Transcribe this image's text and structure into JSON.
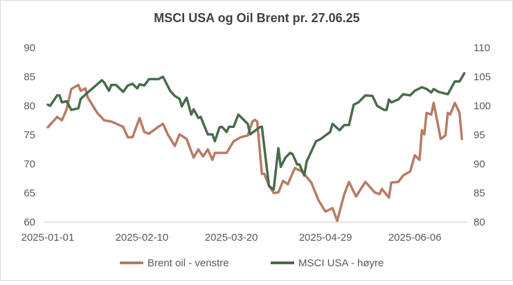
{
  "chart_data": {
    "type": "line",
    "title": "MSCI USA og Oil  Brent pr. 27.06.25",
    "x_start_date": "2025-01-01",
    "x_unit": "days since 2025-01-01",
    "x_tick_labels": [
      "2025-01-01",
      "2025-02-10",
      "2025-03-20",
      "2025-04-29",
      "2025-06-06"
    ],
    "x_tick_days": [
      0,
      40,
      78,
      118,
      156
    ],
    "x_range_days": [
      0,
      178
    ],
    "y_left": {
      "range": [
        60,
        90
      ],
      "ticks": [
        60,
        65,
        70,
        75,
        80,
        85,
        90
      ],
      "label": ""
    },
    "y_right": {
      "range": [
        80,
        110
      ],
      "ticks": [
        80,
        85,
        90,
        95,
        100,
        105,
        110
      ],
      "label": ""
    },
    "grid": false,
    "legend_position": "bottom",
    "series": [
      {
        "name": "Brent oil - venstre",
        "axis": "left",
        "color": "#B77B66",
        "x": [
          0,
          4,
          6,
          8,
          10,
          13,
          14,
          16,
          17,
          21,
          24,
          27,
          32,
          34,
          36,
          39,
          41,
          43,
          47,
          49,
          51,
          54,
          56,
          59,
          62,
          64,
          66,
          68,
          70,
          71,
          76,
          79,
          82,
          85,
          87,
          88,
          89,
          91,
          92,
          94,
          96,
          98,
          100,
          102,
          105,
          108,
          112,
          115,
          118,
          121,
          123,
          126,
          128,
          131,
          135,
          139,
          141,
          142,
          145,
          146,
          149,
          151,
          154,
          156,
          158,
          159,
          160,
          161,
          163,
          164,
          167,
          169,
          170,
          171,
          173,
          175,
          176
        ],
        "y": [
          76.3,
          78.1,
          77.5,
          79.4,
          82.9,
          83.6,
          82.6,
          83.0,
          81.4,
          78.8,
          77.5,
          77.3,
          76.4,
          74.6,
          74.6,
          77.9,
          75.5,
          75.2,
          76.4,
          76.9,
          75.1,
          73.1,
          75.1,
          74.3,
          71.1,
          72.5,
          71.3,
          72.5,
          70.7,
          71.9,
          71.9,
          73.9,
          74.6,
          74.9,
          77.3,
          77.6,
          77.3,
          68.3,
          68.3,
          66.3,
          65.0,
          65.1,
          67.1,
          66.5,
          69.3,
          68.7,
          66.8,
          63.8,
          61.8,
          62.4,
          60.2,
          64.8,
          66.9,
          64.4,
          66.9,
          65.1,
          64.8,
          65.7,
          64.2,
          66.8,
          66.9,
          68.0,
          68.7,
          71.5,
          70.7,
          75.8,
          75.1,
          78.8,
          78.5,
          80.5,
          74.3,
          74.9,
          78.8,
          78.5,
          80.5,
          78.8,
          74.3
        ]
      },
      {
        "name": "MSCI USA - høyre",
        "axis": "right",
        "color": "#4A6B4B",
        "x": [
          0,
          1,
          4,
          5,
          6,
          8,
          10,
          13,
          14,
          17,
          19,
          23,
          24,
          26,
          27,
          29,
          32,
          34,
          36,
          38,
          39,
          41,
          43,
          47,
          49,
          52,
          54,
          56,
          57,
          59,
          61,
          62,
          64,
          65,
          68,
          70,
          71,
          73,
          74,
          76,
          77,
          79,
          81,
          84,
          85,
          86,
          90,
          91,
          94,
          96,
          98,
          99,
          101,
          103,
          104,
          106,
          107,
          109,
          110,
          114,
          116,
          120,
          121,
          124,
          126,
          128,
          130,
          132,
          135,
          138,
          140,
          143,
          144,
          145,
          146,
          149,
          151,
          154,
          156,
          159,
          161,
          163,
          164,
          166,
          170,
          173,
          175,
          177
        ],
        "y": [
          100.2,
          100.0,
          101.8,
          101.8,
          100.6,
          100.8,
          99.3,
          99.6,
          101.2,
          102.3,
          103.0,
          104.4,
          104.0,
          102.6,
          103.6,
          103.6,
          102.4,
          103.5,
          103.8,
          103.0,
          103.7,
          103.5,
          104.6,
          104.6,
          105.0,
          102.6,
          101.7,
          101.2,
          99.9,
          101.4,
          98.5,
          99.4,
          97.9,
          98.1,
          95.1,
          95.1,
          93.9,
          96.3,
          96.4,
          95.5,
          96.4,
          96.4,
          98.5,
          97.3,
          96.9,
          95.1,
          96.3,
          96.4,
          86.2,
          85.6,
          92.7,
          89.5,
          91.1,
          91.9,
          91.7,
          89.9,
          89.9,
          88.0,
          90.4,
          93.9,
          94.3,
          95.5,
          96.9,
          95.8,
          96.7,
          96.7,
          100.2,
          100.6,
          101.8,
          101.7,
          100.0,
          99.3,
          99.3,
          101.1,
          100.6,
          101.1,
          102.0,
          101.8,
          102.6,
          103.2,
          102.9,
          102.3,
          102.9,
          102.4,
          102.0,
          104.2,
          104.2,
          105.6
        ]
      }
    ]
  }
}
